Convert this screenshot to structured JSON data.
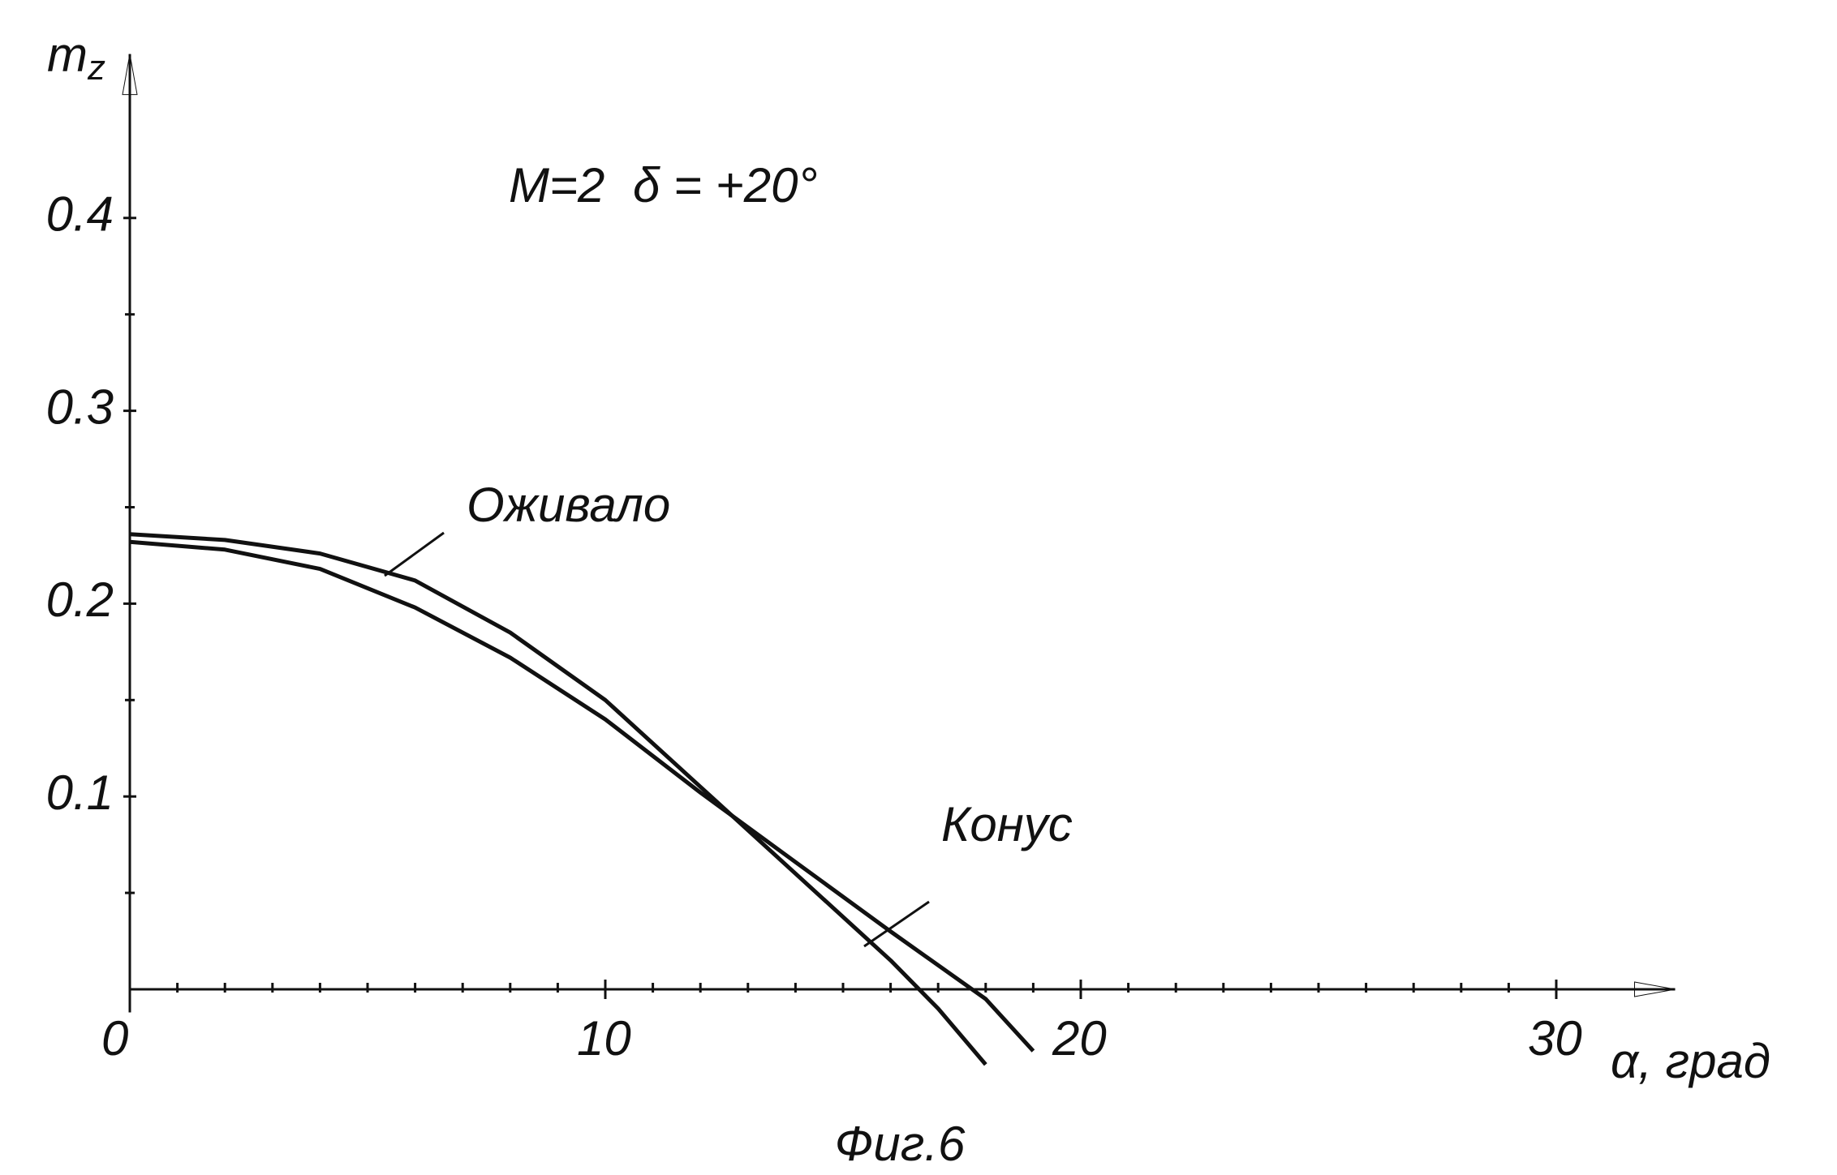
{
  "chart_data": {
    "type": "line",
    "annotations": [
      "M=2",
      "δ = +20°"
    ],
    "y_label": "m<sub>z</sub>",
    "x_label": "α, град",
    "caption": "Фиг.6",
    "xlim": [
      0,
      32.5
    ],
    "ylim": [
      -0.012,
      0.485
    ],
    "xticks": [
      0,
      10,
      20,
      30
    ],
    "yticks": [
      0.1,
      0.2,
      0.3,
      0.4
    ],
    "xminor_ticks": [
      1,
      2,
      3,
      4,
      5,
      6,
      7,
      8,
      9,
      11,
      12,
      13,
      14,
      15,
      16,
      17,
      18,
      19,
      21,
      22,
      23,
      24,
      25,
      26,
      27,
      28,
      29
    ],
    "yminor_ticks": [
      0.05,
      0.15,
      0.25,
      0.35
    ],
    "series": [
      {
        "name": "Оживало",
        "color": "#111111",
        "x": [
          0,
          2,
          4,
          6,
          8,
          10,
          12,
          14,
          16,
          17,
          18
        ],
        "values": [
          0.236,
          0.233,
          0.226,
          0.212,
          0.185,
          0.15,
          0.105,
          0.06,
          0.015,
          -0.01,
          -0.039
        ]
      },
      {
        "name": "Конус",
        "color": "#111111",
        "x": [
          0,
          2,
          4,
          6,
          8,
          10,
          12,
          14,
          16,
          18,
          19
        ],
        "values": [
          0.232,
          0.228,
          0.218,
          0.198,
          0.172,
          0.14,
          0.102,
          0.066,
          0.03,
          -0.005,
          -0.032
        ]
      }
    ]
  }
}
